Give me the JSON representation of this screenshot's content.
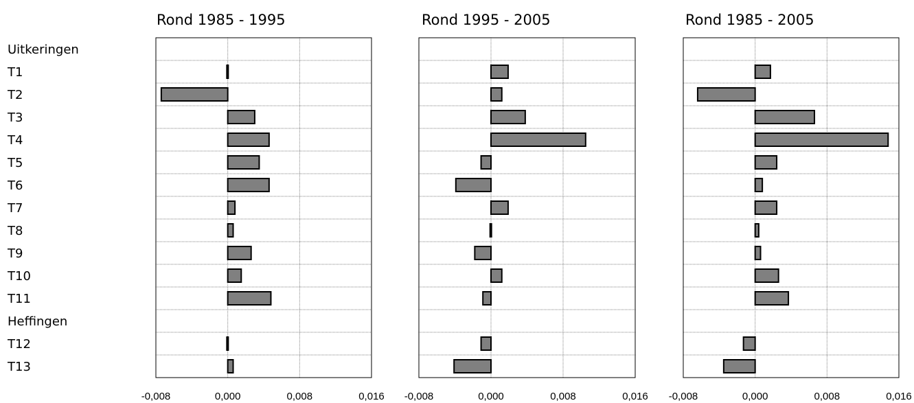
{
  "categories": [
    "Uitkeringen",
    "T1",
    "T2",
    "T3",
    "T4",
    "T5",
    "T6",
    "T7",
    "T8",
    "T9",
    "T10",
    "T11",
    "Heffingen",
    "T12",
    "T13"
  ],
  "x_ticks": [
    "-0,008",
    "0,000",
    "0,008",
    "0,016"
  ],
  "colors": {
    "bar": "#808080",
    "stroke": "#000000",
    "grid": "#808080"
  },
  "chart_data": [
    {
      "type": "bar",
      "title": "Rond 1985 - 1995",
      "xlim": [
        -0.008,
        0.016
      ],
      "categories": [
        "Uitkeringen",
        "T1",
        "T2",
        "T3",
        "T4",
        "T5",
        "T6",
        "T7",
        "T8",
        "T9",
        "T10",
        "T11",
        "Heffingen",
        "T12",
        "T13"
      ],
      "values": [
        null,
        -0.0001,
        -0.0074,
        0.003,
        0.0046,
        0.0035,
        0.0046,
        0.0008,
        0.0006,
        0.0026,
        0.0015,
        0.0048,
        null,
        -0.0001,
        0.0006
      ]
    },
    {
      "type": "bar",
      "title": "Rond 1995 - 2005",
      "xlim": [
        -0.008,
        0.016
      ],
      "categories": [
        "Uitkeringen",
        "T1",
        "T2",
        "T3",
        "T4",
        "T5",
        "T6",
        "T7",
        "T8",
        "T9",
        "T10",
        "T11",
        "Heffingen",
        "T12",
        "T13"
      ],
      "values": [
        null,
        0.0019,
        0.0012,
        0.0038,
        0.0105,
        -0.0011,
        -0.0039,
        0.0019,
        -0.0001,
        -0.0018,
        0.0012,
        -0.0009,
        null,
        -0.0011,
        -0.0041
      ]
    },
    {
      "type": "bar",
      "title": "Rond 1985 - 2005",
      "xlim": [
        -0.008,
        0.016
      ],
      "categories": [
        "Uitkeringen",
        "T1",
        "T2",
        "T3",
        "T4",
        "T5",
        "T6",
        "T7",
        "T8",
        "T9",
        "T10",
        "T11",
        "Heffingen",
        "T12",
        "T13"
      ],
      "values": [
        null,
        0.0017,
        -0.0064,
        0.0066,
        0.0148,
        0.0024,
        0.0008,
        0.0024,
        0.0004,
        0.0006,
        0.0026,
        0.0037,
        null,
        -0.0013,
        -0.0035
      ]
    }
  ]
}
